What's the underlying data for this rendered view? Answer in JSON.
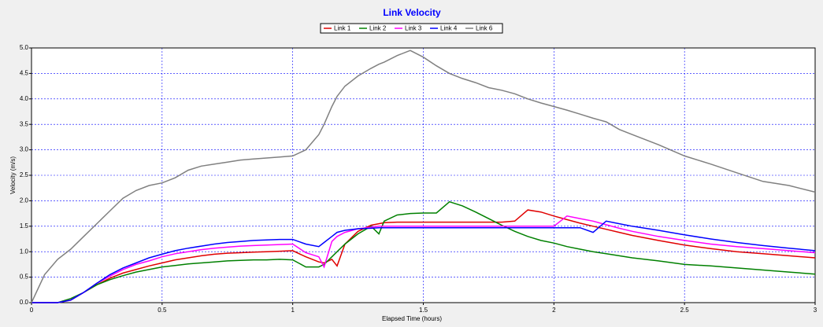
{
  "chart_data": {
    "type": "line",
    "title": "Link Velocity",
    "xlabel": "Elapsed Time (hours)",
    "ylabel": "Velocity (m/s)",
    "x": [
      0,
      0.05,
      0.1,
      0.15,
      0.2,
      0.25,
      0.3,
      0.35,
      0.4,
      0.45,
      0.5,
      0.55,
      0.6,
      0.65,
      0.7,
      0.75,
      0.8,
      0.85,
      0.9,
      0.95,
      1,
      1.05,
      1.1,
      1.12,
      1.15,
      1.17,
      1.2,
      1.25,
      1.3,
      1.33,
      1.35,
      1.4,
      1.45,
      1.5,
      1.55,
      1.6,
      1.65,
      1.7,
      1.75,
      1.8,
      1.85,
      1.9,
      1.95,
      2,
      2.05,
      2.1,
      2.15,
      2.2,
      2.25,
      2.3,
      2.4,
      2.5,
      2.6,
      2.7,
      2.8,
      2.9,
      3
    ],
    "series": [
      {
        "name": "Link 1",
        "color": "#e00000",
        "values": [
          0,
          0,
          0,
          0.05,
          0.2,
          0.35,
          0.48,
          0.58,
          0.65,
          0.72,
          0.78,
          0.84,
          0.88,
          0.92,
          0.95,
          0.97,
          0.98,
          0.99,
          1.0,
          1.01,
          1.02,
          0.9,
          0.8,
          0.78,
          0.85,
          0.72,
          1.15,
          1.4,
          1.52,
          1.55,
          1.57,
          1.58,
          1.58,
          1.58,
          1.58,
          1.58,
          1.58,
          1.58,
          1.58,
          1.58,
          1.6,
          1.82,
          1.78,
          1.7,
          1.63,
          1.56,
          1.5,
          1.44,
          1.38,
          1.32,
          1.22,
          1.13,
          1.06,
          1.0,
          0.96,
          0.92,
          0.88
        ]
      },
      {
        "name": "Link 2",
        "color": "#008000",
        "values": [
          0,
          0,
          0,
          0.08,
          0.2,
          0.35,
          0.45,
          0.53,
          0.6,
          0.65,
          0.7,
          0.73,
          0.76,
          0.78,
          0.8,
          0.82,
          0.83,
          0.84,
          0.84,
          0.85,
          0.84,
          0.7,
          0.7,
          0.75,
          0.9,
          1.0,
          1.15,
          1.35,
          1.5,
          1.35,
          1.6,
          1.72,
          1.75,
          1.76,
          1.76,
          1.98,
          1.9,
          1.78,
          1.65,
          1.52,
          1.4,
          1.3,
          1.22,
          1.17,
          1.1,
          1.05,
          1.0,
          0.96,
          0.92,
          0.88,
          0.82,
          0.75,
          0.72,
          0.68,
          0.64,
          0.6,
          0.56
        ]
      },
      {
        "name": "Link 3",
        "color": "#ff00ff",
        "values": [
          0,
          0,
          0,
          0.05,
          0.2,
          0.38,
          0.52,
          0.65,
          0.75,
          0.82,
          0.9,
          0.96,
          1.0,
          1.04,
          1.07,
          1.09,
          1.11,
          1.12,
          1.13,
          1.14,
          1.15,
          0.98,
          0.9,
          0.7,
          1.2,
          1.3,
          1.38,
          1.45,
          1.48,
          1.5,
          1.5,
          1.5,
          1.5,
          1.5,
          1.5,
          1.5,
          1.5,
          1.5,
          1.5,
          1.5,
          1.5,
          1.5,
          1.5,
          1.5,
          1.7,
          1.65,
          1.6,
          1.53,
          1.46,
          1.4,
          1.3,
          1.22,
          1.15,
          1.1,
          1.06,
          1.02,
          0.98
        ]
      },
      {
        "name": "Link 4",
        "color": "#0000ff",
        "values": [
          0,
          0,
          0,
          0.05,
          0.2,
          0.38,
          0.55,
          0.68,
          0.78,
          0.88,
          0.95,
          1.02,
          1.07,
          1.11,
          1.15,
          1.18,
          1.2,
          1.22,
          1.23,
          1.24,
          1.24,
          1.15,
          1.1,
          1.18,
          1.3,
          1.38,
          1.42,
          1.45,
          1.46,
          1.47,
          1.47,
          1.47,
          1.47,
          1.47,
          1.47,
          1.47,
          1.47,
          1.47,
          1.47,
          1.47,
          1.47,
          1.47,
          1.47,
          1.47,
          1.47,
          1.47,
          1.38,
          1.6,
          1.55,
          1.5,
          1.42,
          1.33,
          1.25,
          1.18,
          1.12,
          1.07,
          1.02
        ]
      },
      {
        "name": "Link 6",
        "color": "#808080",
        "values": [
          0,
          0.55,
          0.85,
          1.05,
          1.3,
          1.55,
          1.8,
          2.05,
          2.2,
          2.3,
          2.35,
          2.45,
          2.6,
          2.68,
          2.72,
          2.76,
          2.8,
          2.82,
          2.84,
          2.86,
          2.88,
          3.0,
          3.3,
          3.5,
          3.85,
          4.05,
          4.25,
          4.45,
          4.6,
          4.68,
          4.72,
          4.85,
          4.95,
          4.82,
          4.65,
          4.5,
          4.4,
          4.32,
          4.22,
          4.17,
          4.1,
          4.0,
          3.92,
          3.85,
          3.78,
          3.7,
          3.62,
          3.55,
          3.4,
          3.3,
          3.1,
          2.88,
          2.72,
          2.55,
          2.38,
          2.3,
          2.17
        ]
      }
    ],
    "xlim": [
      0,
      3
    ],
    "xticks": [
      0,
      0.5,
      1,
      1.5,
      2,
      2.5,
      3
    ],
    "ylim": [
      0,
      5
    ],
    "yticks": [
      {
        "value": 0,
        "label": "0.0"
      },
      0.5,
      {
        "value": 1,
        "label": "1.0"
      },
      1.5,
      {
        "value": 2,
        "label": "2.0"
      },
      2.5,
      {
        "value": 3,
        "label": "3.0"
      },
      3.5,
      {
        "value": 4,
        "label": "4.0"
      },
      4.5,
      {
        "value": 5,
        "label": "5.0"
      }
    ],
    "grid": true,
    "legend": "top"
  }
}
